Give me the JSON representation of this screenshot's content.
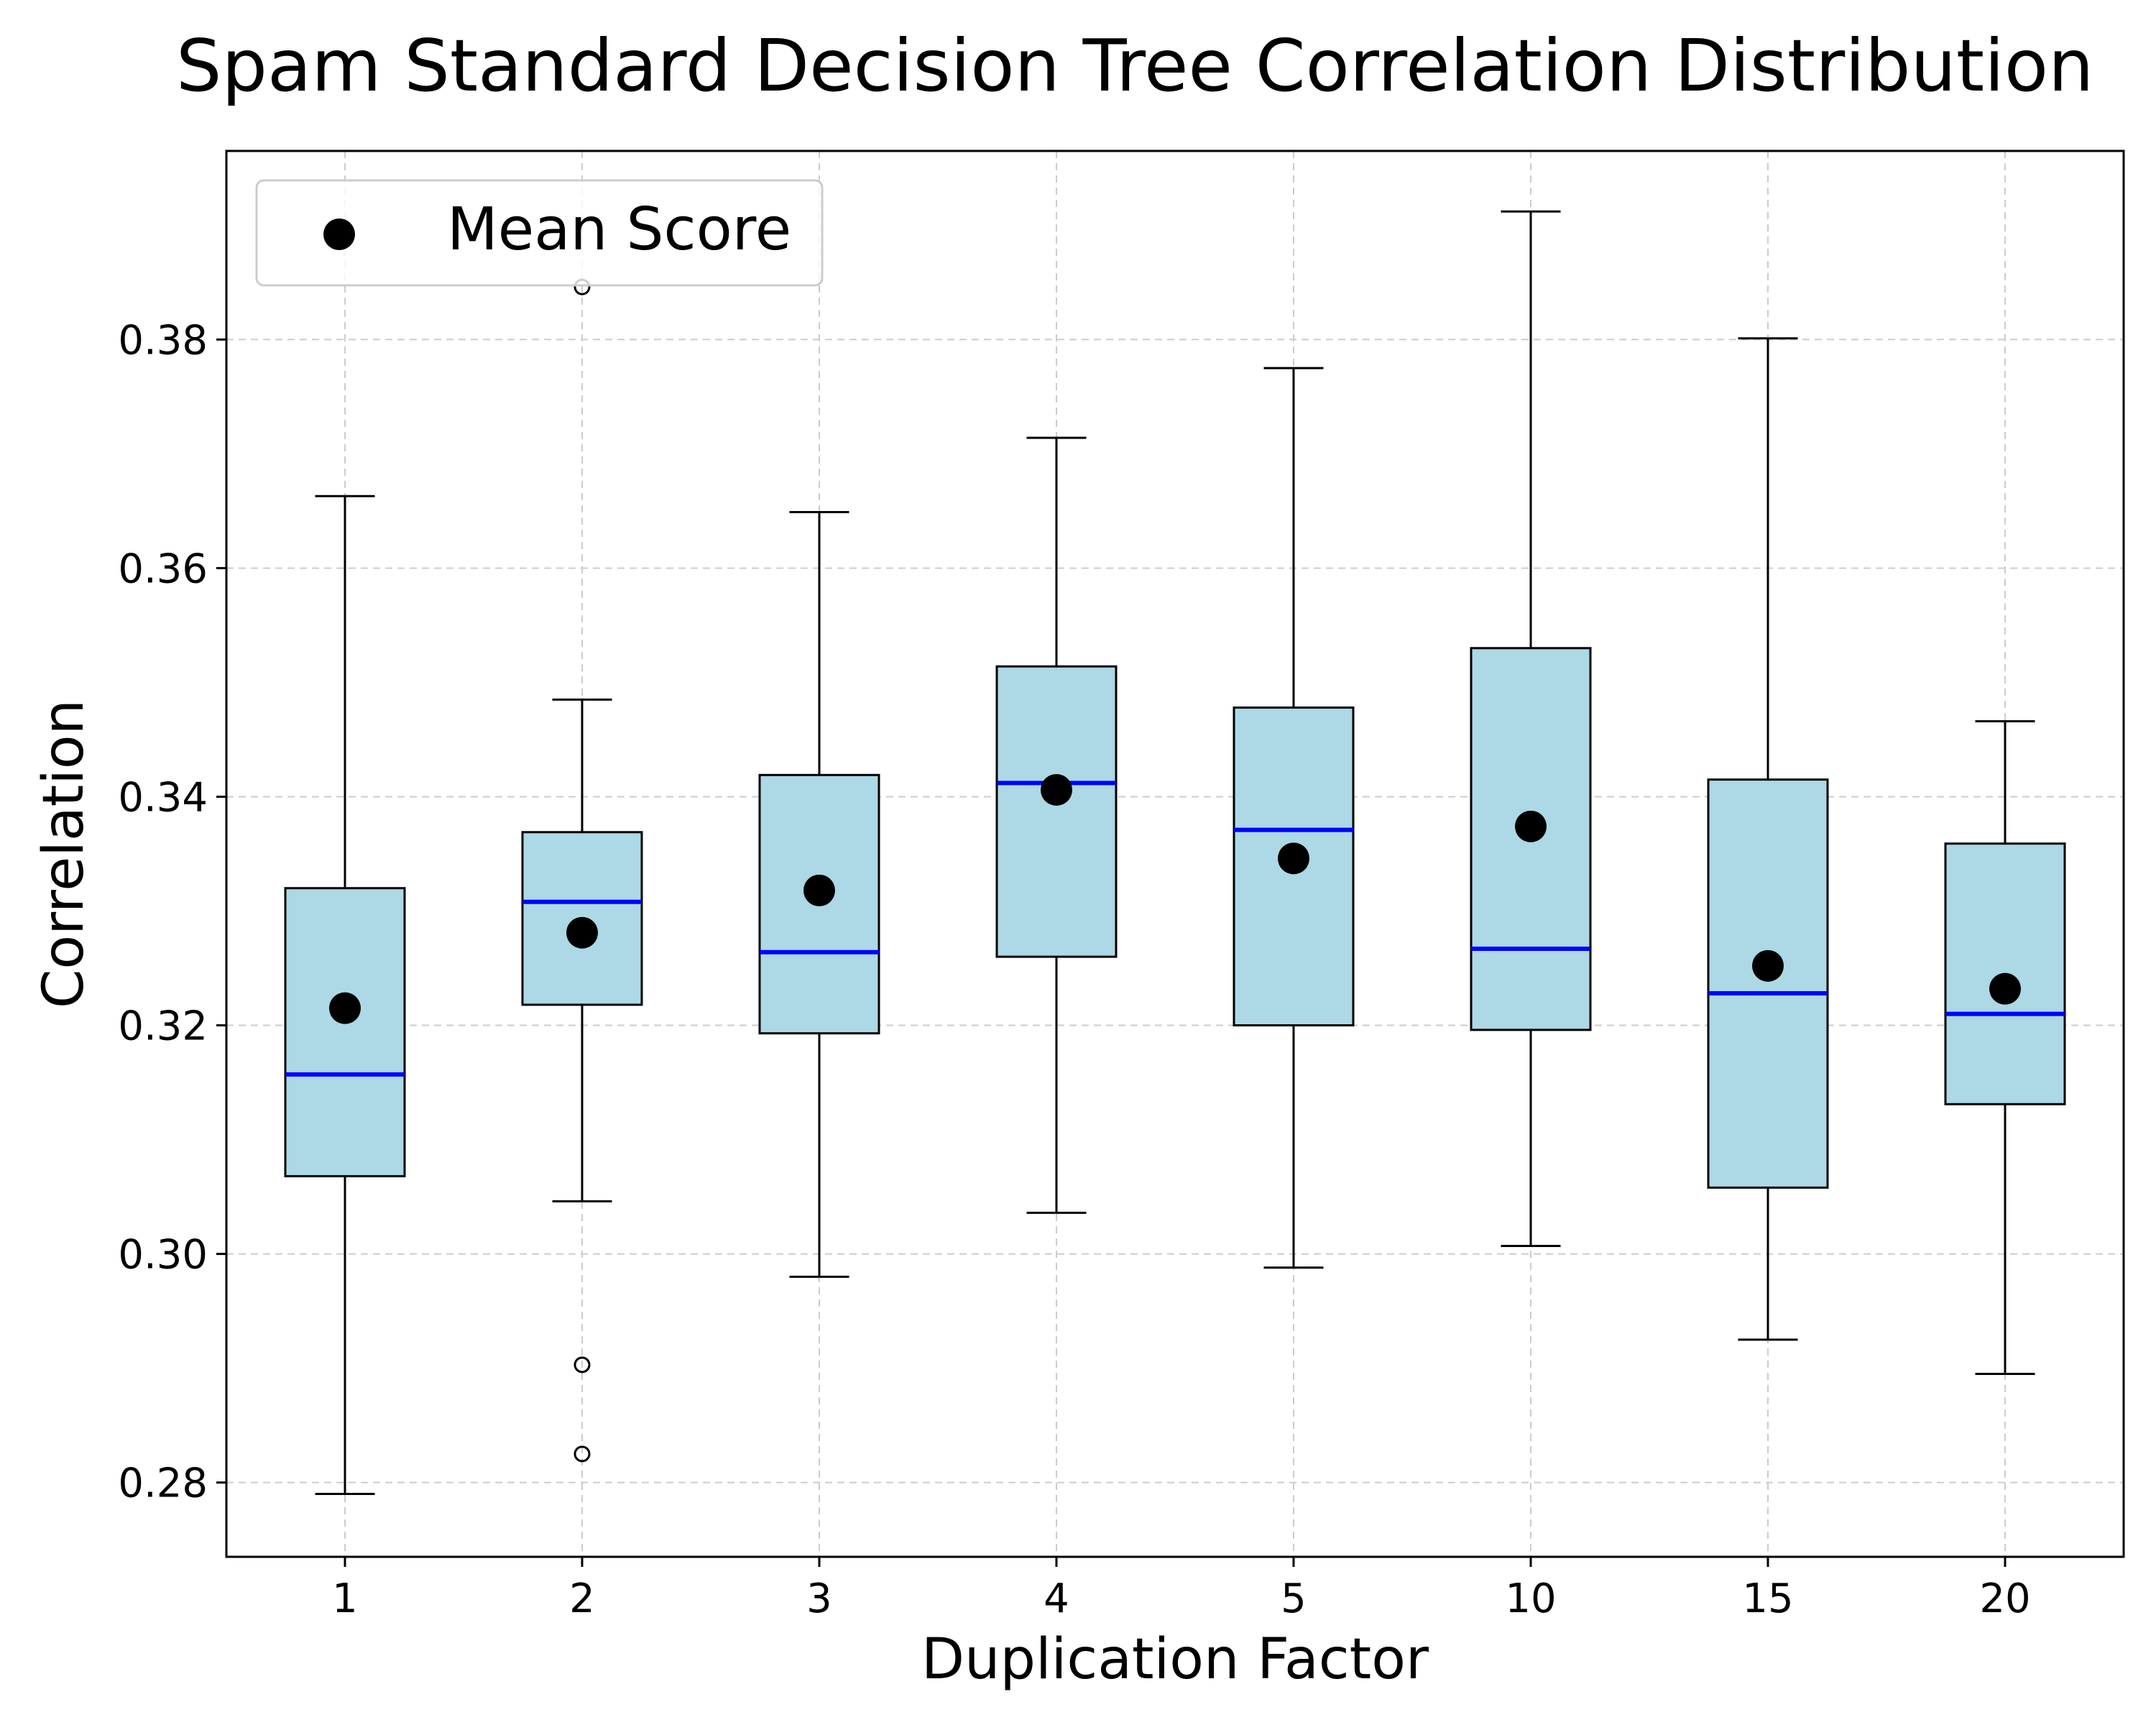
{
  "chart_data": {
    "type": "boxplot",
    "title": "Spam Standard Decision Tree Correlation Distribution",
    "xlabel": "Duplication Factor",
    "ylabel": "Correlation",
    "categories": [
      "1",
      "2",
      "3",
      "4",
      "5",
      "10",
      "15",
      "20"
    ],
    "ylim": [
      0.2735,
      0.3965
    ],
    "yticks": [
      0.28,
      0.3,
      0.32,
      0.34,
      0.36,
      0.38
    ],
    "ytick_labels": [
      "0.28",
      "0.30",
      "0.32",
      "0.34",
      "0.36",
      "0.38"
    ],
    "grid": true,
    "legend": {
      "label": "Mean Score",
      "position": "top-left"
    },
    "colors": {
      "box_fill": "#add8e6",
      "median": "#0000ff",
      "mean": "#000000",
      "grid": "#cccccc"
    },
    "boxes": [
      {
        "category": "1",
        "whisker_low": 0.279,
        "q1": 0.3068,
        "median": 0.3157,
        "q3": 0.332,
        "whisker_high": 0.3663,
        "mean": 0.3215,
        "outliers": []
      },
      {
        "category": "2",
        "whisker_low": 0.3046,
        "q1": 0.3218,
        "median": 0.3308,
        "q3": 0.3369,
        "whisker_high": 0.3485,
        "mean": 0.3281,
        "outliers": [
          0.2903,
          0.2825,
          0.3846
        ]
      },
      {
        "category": "3",
        "whisker_low": 0.298,
        "q1": 0.3193,
        "median": 0.3264,
        "q3": 0.3419,
        "whisker_high": 0.3649,
        "mean": 0.3318,
        "outliers": []
      },
      {
        "category": "4",
        "whisker_low": 0.3036,
        "q1": 0.326,
        "median": 0.3412,
        "q3": 0.3514,
        "whisker_high": 0.3714,
        "mean": 0.3406,
        "outliers": []
      },
      {
        "category": "5",
        "whisker_low": 0.2988,
        "q1": 0.32,
        "median": 0.3371,
        "q3": 0.3478,
        "whisker_high": 0.3775,
        "mean": 0.3346,
        "outliers": []
      },
      {
        "category": "10",
        "whisker_low": 0.3007,
        "q1": 0.3196,
        "median": 0.3267,
        "q3": 0.353,
        "whisker_high": 0.3912,
        "mean": 0.3374,
        "outliers": []
      },
      {
        "category": "15",
        "whisker_low": 0.2925,
        "q1": 0.3058,
        "median": 0.3228,
        "q3": 0.3415,
        "whisker_high": 0.3801,
        "mean": 0.3252,
        "outliers": []
      },
      {
        "category": "20",
        "whisker_low": 0.2895,
        "q1": 0.3131,
        "median": 0.321,
        "q3": 0.3359,
        "whisker_high": 0.3466,
        "mean": 0.3232,
        "outliers": []
      }
    ]
  }
}
